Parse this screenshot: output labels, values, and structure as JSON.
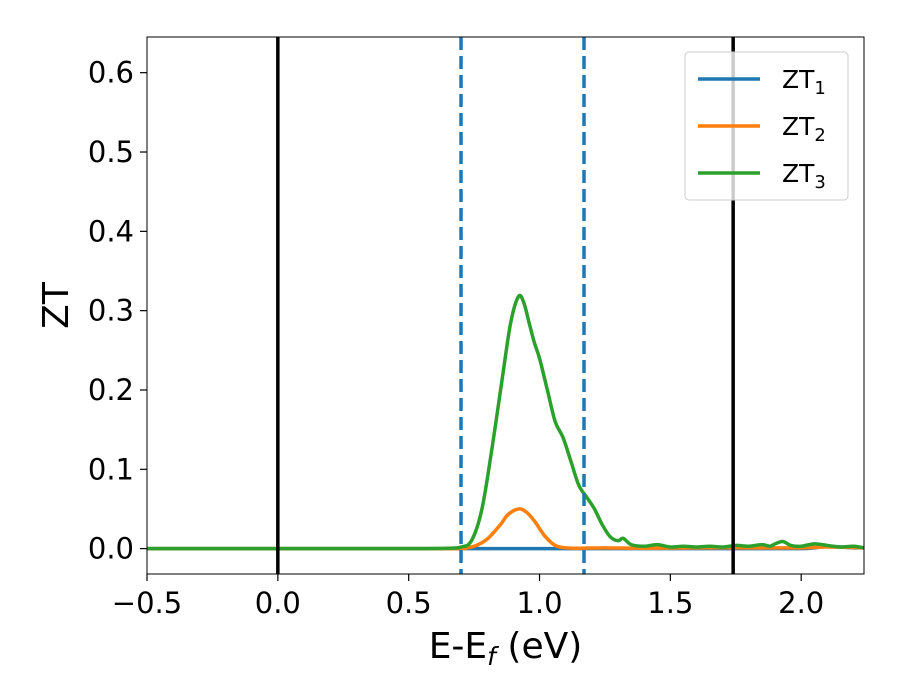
{
  "chart_data": {
    "type": "line",
    "xlabel": "E-E_f (eV)",
    "xlabel_parts": {
      "main": "E-E",
      "sub": "f",
      "unit": " (eV)"
    },
    "ylabel": "ZT",
    "xlim": [
      -0.5,
      2.24
    ],
    "ylim": [
      -0.032,
      0.645
    ],
    "x_ticks": [
      -0.5,
      0.0,
      0.5,
      1.0,
      1.5,
      2.0
    ],
    "x_tick_labels": [
      "−0.5",
      "0.0",
      "0.5",
      "1.0",
      "1.5",
      "2.0"
    ],
    "y_ticks": [
      0.0,
      0.1,
      0.2,
      0.3,
      0.4,
      0.5,
      0.6
    ],
    "y_tick_labels": [
      "0.0",
      "0.1",
      "0.2",
      "0.3",
      "0.4",
      "0.5",
      "0.6"
    ],
    "grid": false,
    "legend_position": "top-right",
    "series": [
      {
        "name": "ZT1",
        "label_main": "ZT",
        "label_sub": "1",
        "color": "#1f77b4",
        "x": [
          -0.5,
          0.5,
          1.0,
          1.5,
          1.9,
          2.0,
          2.05,
          2.1,
          2.15,
          2.2,
          2.24
        ],
        "y": [
          0,
          0,
          0,
          0,
          0,
          0,
          0.001,
          0.003,
          0.002,
          0.001,
          0.001
        ]
      },
      {
        "name": "ZT2",
        "label_main": "ZT",
        "label_sub": "2",
        "color": "#ff7f0e",
        "x": [
          -0.5,
          0.6,
          0.7,
          0.75,
          0.8,
          0.85,
          0.88,
          0.92,
          0.95,
          0.98,
          1.02,
          1.06,
          1.1,
          1.15,
          1.25,
          1.4,
          1.6,
          1.8,
          2.0,
          2.1,
          2.24
        ],
        "y": [
          0,
          0,
          0.0005,
          0.003,
          0.012,
          0.03,
          0.043,
          0.05,
          0.046,
          0.035,
          0.016,
          0.004,
          0.001,
          0.0005,
          0.001,
          0.0005,
          0.001,
          0.001,
          0.001,
          0.002,
          0.001
        ]
      },
      {
        "name": "ZT3",
        "label_main": "ZT",
        "label_sub": "3",
        "color": "#2ca02c",
        "x": [
          -0.5,
          0.0,
          0.5,
          0.65,
          0.7,
          0.74,
          0.78,
          0.82,
          0.86,
          0.89,
          0.92,
          0.94,
          0.96,
          0.98,
          1.0,
          1.03,
          1.06,
          1.09,
          1.12,
          1.15,
          1.18,
          1.21,
          1.24,
          1.27,
          1.3,
          1.32,
          1.35,
          1.4,
          1.45,
          1.5,
          1.55,
          1.6,
          1.65,
          1.7,
          1.75,
          1.8,
          1.85,
          1.88,
          1.9,
          1.93,
          1.96,
          2.0,
          2.05,
          2.1,
          2.15,
          2.2,
          2.24
        ],
        "y": [
          0,
          0,
          0,
          0.0005,
          0.002,
          0.01,
          0.05,
          0.13,
          0.22,
          0.285,
          0.318,
          0.31,
          0.285,
          0.26,
          0.24,
          0.2,
          0.16,
          0.14,
          0.11,
          0.08,
          0.065,
          0.05,
          0.03,
          0.015,
          0.01,
          0.013,
          0.005,
          0.003,
          0.005,
          0.002,
          0.003,
          0.002,
          0.003,
          0.002,
          0.004,
          0.003,
          0.005,
          0.003,
          0.006,
          0.009,
          0.004,
          0.003,
          0.006,
          0.004,
          0.002,
          0.003,
          0.001
        ]
      }
    ],
    "vertical_lines": [
      {
        "x": 0.0,
        "style": "solid",
        "color": "#000000"
      },
      {
        "x": 0.7,
        "style": "dashed",
        "color": "#1f77b4"
      },
      {
        "x": 1.17,
        "style": "dashed",
        "color": "#1f77b4"
      },
      {
        "x": 1.74,
        "style": "solid",
        "color": "#000000"
      }
    ]
  }
}
